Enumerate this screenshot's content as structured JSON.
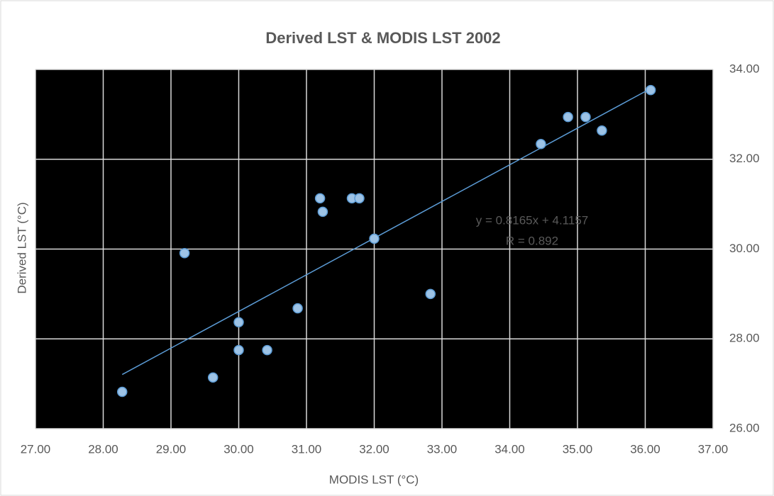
{
  "chart_data": {
    "type": "scatter",
    "title": "Derived LST & MODIS LST 2002",
    "x_label": "MODIS LST (°C)",
    "y_label": "Derived LST (°C)",
    "x": [
      28.28,
      29.2,
      29.62,
      30.0,
      30.0,
      30.42,
      30.87,
      31.2,
      31.24,
      31.67,
      31.78,
      32.0,
      32.83,
      34.46,
      34.86,
      35.12,
      35.36,
      36.08
    ],
    "values": [
      26.82,
      29.91,
      27.14,
      28.37,
      27.75,
      27.75,
      28.68,
      31.13,
      30.83,
      31.13,
      31.13,
      30.23,
      29.0,
      32.34,
      32.94,
      32.94,
      32.64,
      33.54
    ],
    "color": "#9dc3e6",
    "xlim": [
      27,
      37
    ],
    "xticks": [
      {
        "value": 27,
        "label": "27.00"
      },
      {
        "value": 28,
        "label": "28.00"
      },
      {
        "value": 29,
        "label": "29.00"
      },
      {
        "value": 30,
        "label": "30.00"
      },
      {
        "value": 31,
        "label": "31.00"
      },
      {
        "value": 32,
        "label": "32.00"
      },
      {
        "value": 33,
        "label": "33.00"
      },
      {
        "value": 34,
        "label": "34.00"
      },
      {
        "value": 35,
        "label": "35.00"
      },
      {
        "value": 36,
        "label": "36.00"
      },
      {
        "value": 37,
        "label": "37.00"
      }
    ],
    "ylim": [
      26,
      34
    ],
    "yticks": [
      {
        "value": 26,
        "label": "26.00"
      },
      {
        "value": 28,
        "label": "28.00"
      },
      {
        "value": 30,
        "label": "30.00"
      },
      {
        "value": 32,
        "label": "32.00"
      },
      {
        "value": 34,
        "label": "34.00"
      }
    ],
    "grid": true,
    "trendline": {
      "slope": 0.8165,
      "intercept": 4.1157,
      "color": "#5b9bd5",
      "label": "y = 0.8165x + 4.1157",
      "r_label": "R = 0.892"
    }
  }
}
